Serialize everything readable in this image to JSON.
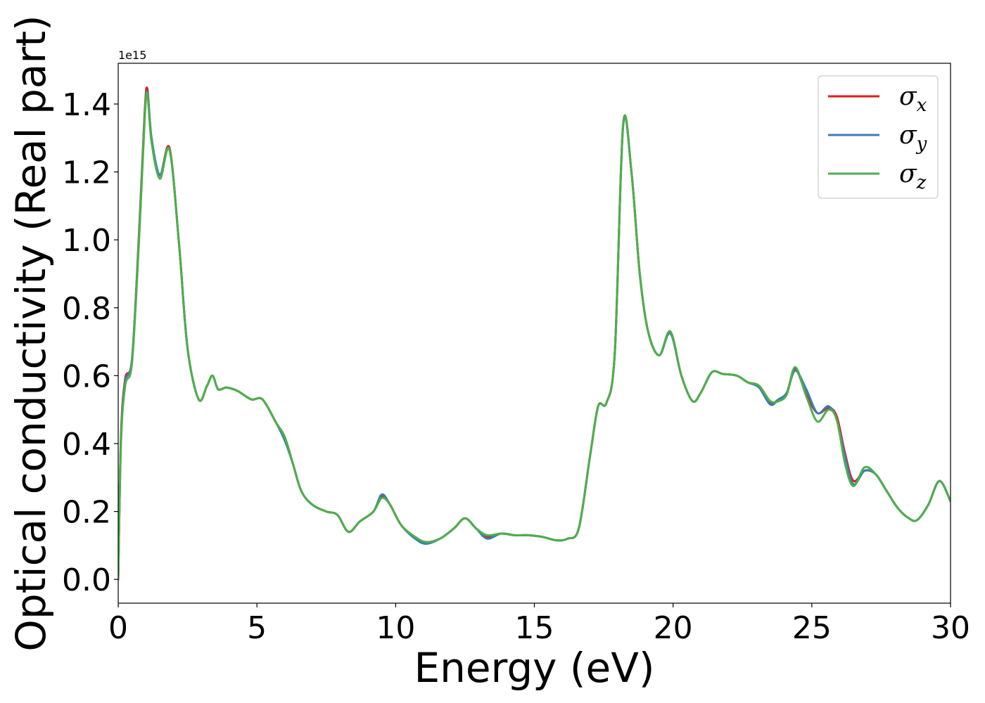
{
  "chart_data": {
    "type": "line",
    "xlabel": "Energy (eV)",
    "ylabel": "Optical conductivity (Real part)",
    "y_offset_label": "1e15",
    "xlim": [
      0,
      30
    ],
    "ylim": [
      -0.07,
      1.52
    ],
    "x_ticks": [
      0,
      5,
      10,
      15,
      20,
      25,
      30
    ],
    "x_tick_labels": [
      "0",
      "5",
      "10",
      "15",
      "20",
      "25",
      "30"
    ],
    "y_ticks": [
      0.0,
      0.2,
      0.4,
      0.6,
      0.8,
      1.0,
      1.2,
      1.4
    ],
    "y_tick_labels": [
      "0.0",
      "0.2",
      "0.4",
      "0.6",
      "0.8",
      "1.0",
      "1.2",
      "1.4"
    ],
    "grid": false,
    "legend_position": "top-right",
    "series": [
      {
        "name": "σx",
        "symbol": "σ",
        "subscript": "x",
        "color": "#e41a1c",
        "x": [
          0,
          0.1,
          0.25,
          0.5,
          0.75,
          0.95,
          1.05,
          1.2,
          1.5,
          1.85,
          2.2,
          2.5,
          2.9,
          3.2,
          3.4,
          3.6,
          3.9,
          4.3,
          4.8,
          5.2,
          5.7,
          6.0,
          6.3,
          6.6,
          7.0,
          7.5,
          7.9,
          8.3,
          8.7,
          9.2,
          9.5,
          9.8,
          10.2,
          10.7,
          11.1,
          11.6,
          12.1,
          12.5,
          12.9,
          13.3,
          13.8,
          14.3,
          14.8,
          15.3,
          15.8,
          16.2,
          16.6,
          17.0,
          17.3,
          17.6,
          17.9,
          18.2,
          18.5,
          18.8,
          19.1,
          19.5,
          19.9,
          20.3,
          20.7,
          21.0,
          21.4,
          21.8,
          22.3,
          22.7,
          23.1,
          23.5,
          23.8,
          24.1,
          24.4,
          24.8,
          25.2,
          25.6,
          25.9,
          26.2,
          26.5,
          26.9,
          27.3,
          27.7,
          28.1,
          28.5,
          28.8,
          29.2,
          29.6,
          30.0
        ],
        "y": [
          0.0,
          0.42,
          0.59,
          0.65,
          1.02,
          1.37,
          1.445,
          1.3,
          1.19,
          1.27,
          0.98,
          0.68,
          0.53,
          0.57,
          0.6,
          0.56,
          0.565,
          0.555,
          0.53,
          0.53,
          0.46,
          0.42,
          0.34,
          0.26,
          0.22,
          0.2,
          0.19,
          0.14,
          0.17,
          0.2,
          0.245,
          0.22,
          0.16,
          0.125,
          0.11,
          0.12,
          0.15,
          0.18,
          0.15,
          0.125,
          0.135,
          0.13,
          0.13,
          0.125,
          0.115,
          0.12,
          0.15,
          0.36,
          0.51,
          0.52,
          0.67,
          1.34,
          1.2,
          0.9,
          0.73,
          0.66,
          0.73,
          0.6,
          0.525,
          0.55,
          0.61,
          0.605,
          0.6,
          0.58,
          0.57,
          0.52,
          0.53,
          0.55,
          0.62,
          0.545,
          0.49,
          0.505,
          0.48,
          0.37,
          0.29,
          0.32,
          0.31,
          0.26,
          0.21,
          0.18,
          0.175,
          0.22,
          0.29,
          0.23
        ]
      },
      {
        "name": "σy",
        "symbol": "σ",
        "subscript": "y",
        "color": "#377eb8",
        "x": [
          0,
          0.1,
          0.25,
          0.5,
          0.75,
          0.95,
          1.05,
          1.2,
          1.5,
          1.85,
          2.2,
          2.5,
          2.9,
          3.2,
          3.4,
          3.6,
          3.9,
          4.3,
          4.8,
          5.2,
          5.7,
          6.0,
          6.3,
          6.6,
          7.0,
          7.5,
          7.9,
          8.3,
          8.7,
          9.2,
          9.5,
          9.8,
          10.2,
          10.7,
          11.1,
          11.6,
          12.1,
          12.5,
          12.9,
          13.3,
          13.8,
          14.3,
          14.8,
          15.3,
          15.8,
          16.2,
          16.6,
          17.0,
          17.3,
          17.6,
          17.9,
          18.2,
          18.5,
          18.8,
          19.1,
          19.5,
          19.9,
          20.3,
          20.7,
          21.0,
          21.4,
          21.8,
          22.3,
          22.7,
          23.1,
          23.5,
          23.8,
          24.1,
          24.4,
          24.8,
          25.2,
          25.6,
          25.9,
          26.2,
          26.5,
          26.9,
          27.3,
          27.7,
          28.1,
          28.5,
          28.8,
          29.2,
          29.6,
          30.0
        ],
        "y": [
          0.0,
          0.41,
          0.58,
          0.65,
          1.01,
          1.36,
          1.435,
          1.3,
          1.19,
          1.265,
          0.98,
          0.68,
          0.53,
          0.57,
          0.6,
          0.56,
          0.565,
          0.555,
          0.53,
          0.53,
          0.46,
          0.41,
          0.34,
          0.26,
          0.22,
          0.2,
          0.19,
          0.14,
          0.17,
          0.2,
          0.25,
          0.22,
          0.16,
          0.12,
          0.105,
          0.12,
          0.15,
          0.18,
          0.15,
          0.12,
          0.135,
          0.13,
          0.13,
          0.125,
          0.115,
          0.12,
          0.15,
          0.36,
          0.51,
          0.52,
          0.67,
          1.335,
          1.2,
          0.9,
          0.73,
          0.66,
          0.725,
          0.6,
          0.525,
          0.55,
          0.61,
          0.605,
          0.6,
          0.58,
          0.565,
          0.515,
          0.53,
          0.55,
          0.615,
          0.56,
          0.49,
          0.51,
          0.47,
          0.36,
          0.28,
          0.32,
          0.31,
          0.26,
          0.21,
          0.18,
          0.175,
          0.22,
          0.29,
          0.23
        ]
      },
      {
        "name": "σz",
        "symbol": "σ",
        "subscript": "z",
        "color": "#4daf4a",
        "x": [
          0,
          0.1,
          0.25,
          0.5,
          0.75,
          0.95,
          1.05,
          1.2,
          1.5,
          1.85,
          2.2,
          2.5,
          2.9,
          3.2,
          3.4,
          3.6,
          3.9,
          4.3,
          4.8,
          5.2,
          5.7,
          6.0,
          6.3,
          6.6,
          7.0,
          7.5,
          7.9,
          8.3,
          8.7,
          9.2,
          9.5,
          9.8,
          10.2,
          10.7,
          11.1,
          11.6,
          12.1,
          12.5,
          12.9,
          13.3,
          13.8,
          14.3,
          14.8,
          15.3,
          15.8,
          16.2,
          16.6,
          17.0,
          17.3,
          17.6,
          17.9,
          18.2,
          18.5,
          18.8,
          19.1,
          19.5,
          19.9,
          20.3,
          20.7,
          21.0,
          21.4,
          21.8,
          22.3,
          22.7,
          23.1,
          23.5,
          23.8,
          24.1,
          24.4,
          24.8,
          25.2,
          25.6,
          25.9,
          26.2,
          26.5,
          26.9,
          27.3,
          27.7,
          28.1,
          28.5,
          28.8,
          29.2,
          29.6,
          30.0
        ],
        "y": [
          0.0,
          0.4,
          0.57,
          0.64,
          1.0,
          1.35,
          1.43,
          1.29,
          1.18,
          1.265,
          0.98,
          0.68,
          0.53,
          0.57,
          0.6,
          0.56,
          0.565,
          0.555,
          0.53,
          0.53,
          0.46,
          0.42,
          0.34,
          0.26,
          0.22,
          0.2,
          0.19,
          0.14,
          0.17,
          0.2,
          0.24,
          0.22,
          0.16,
          0.125,
          0.11,
          0.12,
          0.15,
          0.18,
          0.15,
          0.13,
          0.135,
          0.13,
          0.13,
          0.125,
          0.115,
          0.12,
          0.15,
          0.36,
          0.51,
          0.52,
          0.67,
          1.34,
          1.2,
          0.9,
          0.73,
          0.66,
          0.73,
          0.6,
          0.525,
          0.55,
          0.61,
          0.605,
          0.6,
          0.58,
          0.57,
          0.525,
          0.525,
          0.545,
          0.625,
          0.54,
          0.465,
          0.5,
          0.47,
          0.34,
          0.275,
          0.33,
          0.31,
          0.26,
          0.21,
          0.18,
          0.175,
          0.22,
          0.29,
          0.23
        ]
      }
    ]
  }
}
